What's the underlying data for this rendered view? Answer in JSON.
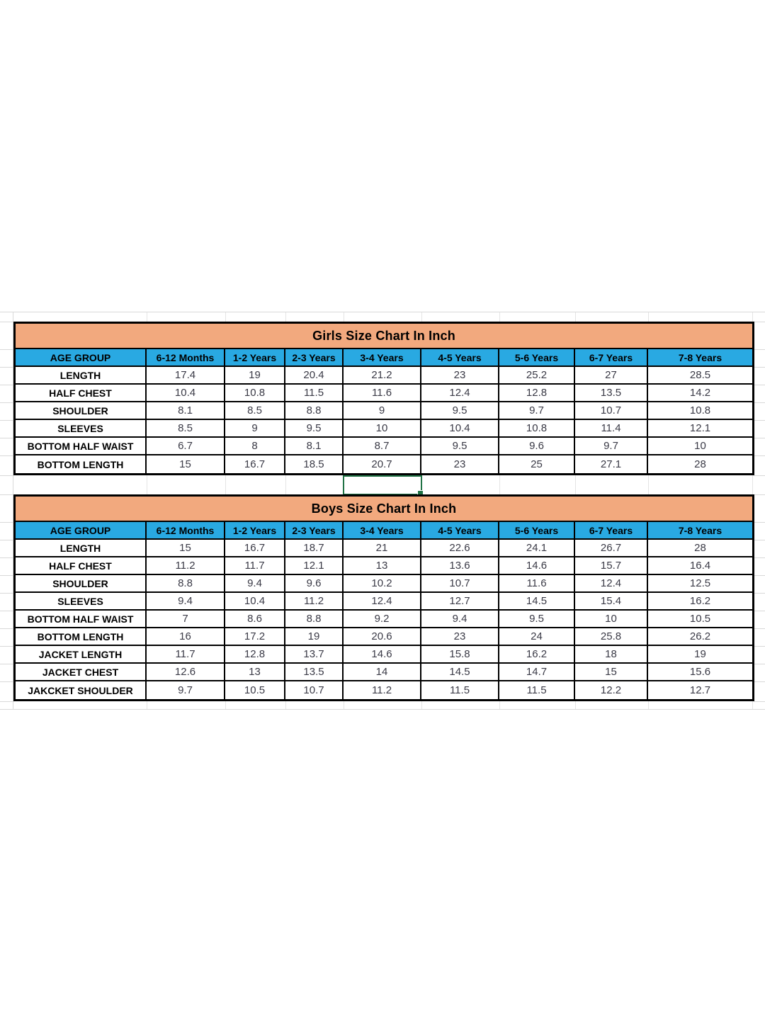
{
  "colors": {
    "title_band_bg": "#F2A97E",
    "header_row_bg": "#29A9E2",
    "selection_green": "#217346",
    "gridline": "#D9D9D9",
    "table_border": "#000000",
    "value_text": "#3A3A46"
  },
  "girls_table": {
    "title": "Girls Size Chart In Inch",
    "header": [
      "AGE GROUP",
      "6-12 Months",
      "1-2 Years",
      "2-3 Years",
      "3-4 Years",
      "4-5 Years",
      "5-6 Years",
      "6-7 Years",
      "7-8 Years"
    ],
    "rows": [
      {
        "label": "LENGTH",
        "values": [
          "17.4",
          "19",
          "20.4",
          "21.2",
          "23",
          "25.2",
          "27",
          "28.5"
        ]
      },
      {
        "label": "HALF CHEST",
        "values": [
          "10.4",
          "10.8",
          "11.5",
          "11.6",
          "12.4",
          "12.8",
          "13.5",
          "14.2"
        ]
      },
      {
        "label": "SHOULDER",
        "values": [
          "8.1",
          "8.5",
          "8.8",
          "9",
          "9.5",
          "9.7",
          "10.7",
          "10.8"
        ]
      },
      {
        "label": "SLEEVES",
        "values": [
          "8.5",
          "9",
          "9.5",
          "10",
          "10.4",
          "10.8",
          "11.4",
          "12.1"
        ]
      },
      {
        "label": "BOTTOM  HALF WAIST",
        "values": [
          "6.7",
          "8",
          "8.1",
          "8.7",
          "9.5",
          "9.6",
          "9.7",
          "10"
        ]
      },
      {
        "label": "BOTTOM LENGTH",
        "values": [
          "15",
          "16.7",
          "18.5",
          "20.7",
          "23",
          "25",
          "27.1",
          "28"
        ]
      }
    ]
  },
  "boys_table": {
    "title": "Boys Size Chart In Inch",
    "header": [
      "AGE GROUP",
      "6-12 Months",
      "1-2 Years",
      "2-3 Years",
      "3-4 Years",
      "4-5 Years",
      "5-6 Years",
      "6-7 Years",
      "7-8 Years"
    ],
    "rows": [
      {
        "label": "LENGTH",
        "values": [
          "15",
          "16.7",
          "18.7",
          "21",
          "22.6",
          "24.1",
          "26.7",
          "28"
        ]
      },
      {
        "label": "HALF CHEST",
        "values": [
          "11.2",
          "11.7",
          "12.1",
          "13",
          "13.6",
          "14.6",
          "15.7",
          "16.4"
        ]
      },
      {
        "label": "SHOULDER",
        "values": [
          "8.8",
          "9.4",
          "9.6",
          "10.2",
          "10.7",
          "11.6",
          "12.4",
          "12.5"
        ]
      },
      {
        "label": "SLEEVES",
        "values": [
          "9.4",
          "10.4",
          "11.2",
          "12.4",
          "12.7",
          "14.5",
          "15.4",
          "16.2"
        ]
      },
      {
        "label": "BOTTOM  HALF WAIST",
        "values": [
          "7",
          "8.6",
          "8.8",
          "9.2",
          "9.4",
          "9.5",
          "10",
          "10.5"
        ]
      },
      {
        "label": "BOTTOM LENGTH",
        "values": [
          "16",
          "17.2",
          "19",
          "20.6",
          "23",
          "24",
          "25.8",
          "26.2"
        ]
      },
      {
        "label": "JACKET LENGTH",
        "values": [
          "11.7",
          "12.8",
          "13.7",
          "14.6",
          "15.8",
          "16.2",
          "18",
          "19"
        ]
      },
      {
        "label": "JACKET CHEST",
        "values": [
          "12.6",
          "13",
          "13.5",
          "14",
          "14.5",
          "14.7",
          "15",
          "15.6"
        ]
      },
      {
        "label": "JAKCKET SHOULDER",
        "values": [
          "9.7",
          "10.5",
          "10.7",
          "11.2",
          "11.5",
          "11.5",
          "12.2",
          "12.7"
        ]
      }
    ]
  },
  "selection": {
    "cell_note": ""
  }
}
